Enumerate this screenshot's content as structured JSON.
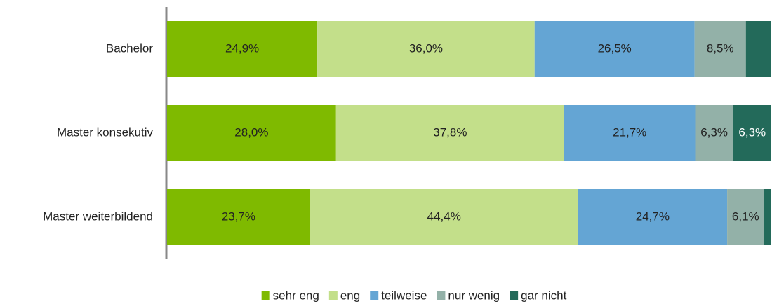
{
  "chart_data": {
    "type": "stacked-bar-horizontal",
    "categories": [
      "Bachelor",
      "Master konsekutiv",
      "Master weiterbildend"
    ],
    "xlim": [
      0,
      100
    ],
    "series": [
      {
        "name": "sehr eng",
        "color": "#7fba00",
        "values": [
          24.9,
          28.0,
          23.7
        ],
        "value_labels": [
          "24,9%",
          "28,0%",
          "23,7%"
        ]
      },
      {
        "name": "eng",
        "color": "#c3df8a",
        "values": [
          36.0,
          37.8,
          44.4
        ],
        "value_labels": [
          "36,0%",
          "37,8%",
          "44,4%"
        ]
      },
      {
        "name": "teilweise",
        "color": "#64a5d4",
        "values": [
          26.5,
          21.7,
          24.7
        ],
        "value_labels": [
          "26,5%",
          "21,7%",
          "24,7%"
        ]
      },
      {
        "name": "nur wenig",
        "color": "#93b1a8",
        "values": [
          8.5,
          6.3,
          6.1
        ],
        "value_labels": [
          "8,5%",
          "6,3%",
          "6,1%"
        ]
      },
      {
        "name": "gar nicht",
        "color": "#236a5a",
        "values": [
          4.1,
          6.3,
          1.1
        ],
        "value_labels": [
          null,
          "6,3%",
          null
        ]
      }
    ],
    "legend": "bottom"
  }
}
